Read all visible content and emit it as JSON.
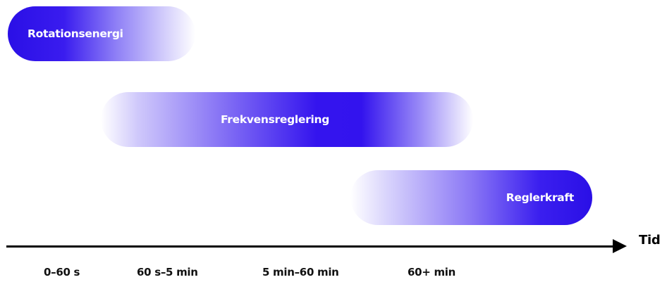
{
  "bars": {
    "rotation": {
      "label": "Rotationsenergi"
    },
    "frequency": {
      "label": "Frekvensreglering"
    },
    "regulating": {
      "label": "Reglerkraft"
    }
  },
  "axis": {
    "label": "Tid",
    "ticks": [
      "0–60 s",
      "60 s–5 min",
      "5 min–60 min",
      "60+ min"
    ]
  },
  "colors": {
    "accent": "#2a0fe6",
    "axis": "#000000"
  }
}
